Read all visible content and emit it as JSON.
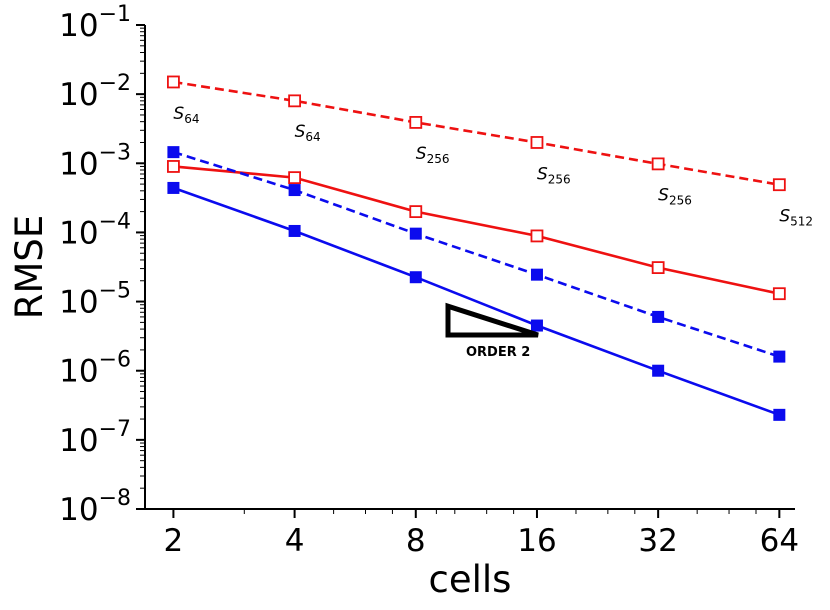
{
  "chart_data": {
    "type": "line",
    "title": "",
    "xlabel": "cells",
    "ylabel": "RMSE",
    "xscale": "log2",
    "yscale": "log10",
    "x": [
      2,
      4,
      8,
      16,
      32,
      64
    ],
    "x_tick_labels": [
      "2",
      "4",
      "8",
      "16",
      "32",
      "64"
    ],
    "ylim": [
      1e-08,
      0.1
    ],
    "y_ticks": [
      {
        "base": "10",
        "exp": "−1",
        "value": 0.1
      },
      {
        "base": "10",
        "exp": "−2",
        "value": 0.01
      },
      {
        "base": "10",
        "exp": "−3",
        "value": 0.001
      },
      {
        "base": "10",
        "exp": "−4",
        "value": 0.0001
      },
      {
        "base": "10",
        "exp": "−5",
        "value": 1e-05
      },
      {
        "base": "10",
        "exp": "−6",
        "value": 1e-06
      },
      {
        "base": "10",
        "exp": "−7",
        "value": 1e-07
      },
      {
        "base": "10",
        "exp": "−8",
        "value": 1e-08
      }
    ],
    "series": [
      {
        "name": "red-dashed-open",
        "color": "#ee1111",
        "dash": true,
        "marker": "open-square",
        "values": [
          0.015,
          0.008,
          0.0039,
          0.002,
          0.00098,
          0.00049
        ]
      },
      {
        "name": "red-solid-open",
        "color": "#ee1111",
        "dash": false,
        "marker": "open-square",
        "values": [
          0.0009,
          0.00062,
          0.0002,
          8.9e-05,
          3.1e-05,
          1.3e-05
        ]
      },
      {
        "name": "blue-dashed-filled",
        "color": "#0b0bee",
        "dash": true,
        "marker": "filled-square",
        "values": [
          0.00145,
          0.00041,
          9.6e-05,
          2.45e-05,
          6e-06,
          1.6e-06
        ]
      },
      {
        "name": "blue-solid-filled",
        "color": "#0b0bee",
        "dash": false,
        "marker": "filled-square",
        "values": [
          0.00044,
          0.000105,
          2.25e-05,
          4.5e-06,
          1e-06,
          2.3e-07
        ]
      }
    ],
    "annotations": [
      {
        "text": "S",
        "sub": "64",
        "x": 2,
        "y": 0.0044
      },
      {
        "text": "S",
        "sub": "64",
        "x": 4,
        "y": 0.0024
      },
      {
        "text": "S",
        "sub": "256",
        "x": 8,
        "y": 0.00115
      },
      {
        "text": "S",
        "sub": "256",
        "x": 16,
        "y": 0.00058
      },
      {
        "text": "S",
        "sub": "256",
        "x": 32,
        "y": 0.00029
      },
      {
        "text": "S",
        "sub": "512",
        "x": 64,
        "y": 0.000145
      }
    ],
    "order_triangle": {
      "label": "ORDER 2",
      "slope": 2
    }
  }
}
